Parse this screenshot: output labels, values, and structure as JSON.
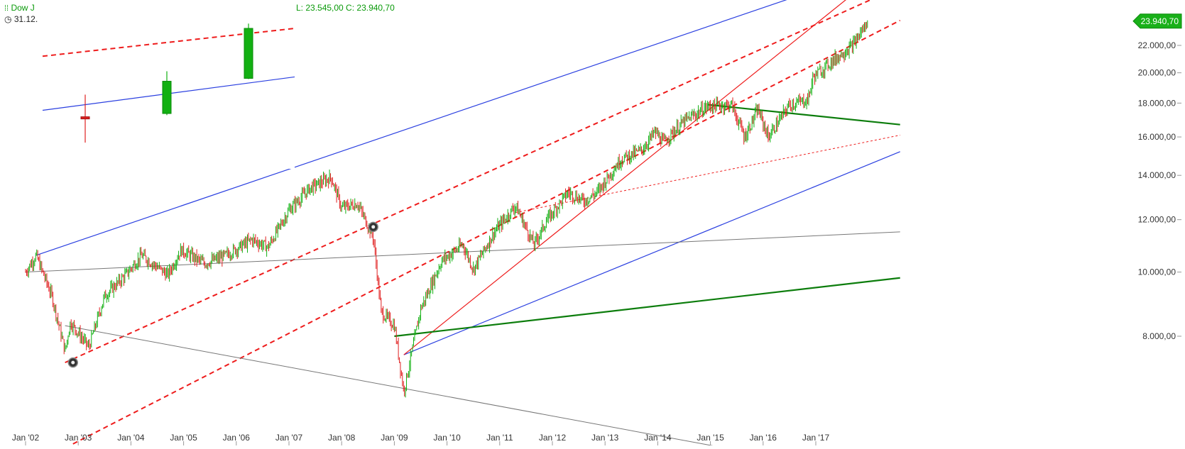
{
  "header": {
    "symbol_label": "Dow J",
    "date_label": "31.12.",
    "low_close_label": "L: 23.545,00  C: 23.940,70"
  },
  "last_price_tag": "23.940,70",
  "colors": {
    "up": "#12b012",
    "down": "#e02020",
    "blue_line": "#2a3fe0",
    "red_line": "#ee1c1c",
    "green_line": "#0c7d0c",
    "gray_line": "#777777",
    "tag_bg": "#19b019"
  },
  "chart_data": {
    "type": "candlestick",
    "title": "Dow J",
    "scale": "log",
    "x_tick_labels": [
      "Jan '02",
      "Jan '03",
      "Jan '04",
      "Jan '05",
      "Jan '06",
      "Jan '07",
      "Jan '08",
      "Jan '09",
      "Jan '10",
      "Jan '11",
      "Jan '12",
      "Jan '13",
      "Jan '14",
      "Jan '15",
      "Jan '16",
      "Jan '17"
    ],
    "y_tick_labels": [
      "8.000,00",
      "10.000,00",
      "12.000,00",
      "14.000,00",
      "16.000,00",
      "18.000,00",
      "20.000,00",
      "22.000,00"
    ],
    "y_ticks": [
      8000,
      10000,
      12000,
      14000,
      16000,
      18000,
      20000,
      22000
    ],
    "last_close": 23940.7,
    "last_low": 23545,
    "price_path": [
      [
        2002.0,
        10000
      ],
      [
        2002.2,
        10600
      ],
      [
        2002.5,
        9200
      ],
      [
        2002.75,
        7600
      ],
      [
        2002.85,
        8400
      ],
      [
        2003.2,
        7700
      ],
      [
        2003.5,
        9200
      ],
      [
        2003.9,
        9900
      ],
      [
        2004.2,
        10600
      ],
      [
        2004.7,
        9900
      ],
      [
        2004.95,
        10800
      ],
      [
        2005.4,
        10300
      ],
      [
        2005.8,
        10600
      ],
      [
        2006.3,
        11200
      ],
      [
        2006.6,
        10900
      ],
      [
        2007.0,
        12400
      ],
      [
        2007.4,
        13400
      ],
      [
        2007.8,
        13900
      ],
      [
        2008.0,
        12500
      ],
      [
        2008.3,
        12700
      ],
      [
        2008.6,
        11300
      ],
      [
        2008.75,
        8700
      ],
      [
        2009.0,
        8300
      ],
      [
        2009.18,
        6600
      ],
      [
        2009.5,
        8800
      ],
      [
        2009.9,
        10400
      ],
      [
        2010.3,
        11000
      ],
      [
        2010.5,
        10100
      ],
      [
        2010.9,
        11500
      ],
      [
        2011.3,
        12600
      ],
      [
        2011.65,
        11000
      ],
      [
        2011.9,
        12000
      ],
      [
        2012.3,
        13200
      ],
      [
        2012.6,
        12800
      ],
      [
        2012.85,
        13200
      ],
      [
        2013.3,
        14800
      ],
      [
        2013.7,
        15300
      ],
      [
        2013.95,
        16300
      ],
      [
        2014.1,
        15700
      ],
      [
        2014.5,
        16900
      ],
      [
        2014.95,
        17800
      ],
      [
        2015.4,
        17900
      ],
      [
        2015.65,
        16000
      ],
      [
        2015.9,
        17600
      ],
      [
        2016.1,
        16000
      ],
      [
        2016.5,
        17900
      ],
      [
        2016.85,
        18200
      ],
      [
        2016.95,
        19700
      ],
      [
        2017.3,
        20800
      ],
      [
        2017.7,
        22000
      ],
      [
        2017.99,
        23940
      ]
    ],
    "inset_candles": [
      {
        "open": 17300,
        "close": 17200,
        "high": 18700,
        "low": 15800
      },
      {
        "open": 17500,
        "close": 19600,
        "high": 20300,
        "low": 17400
      },
      {
        "open": 19800,
        "close": 23600,
        "high": 24000,
        "low": 19750
      }
    ],
    "trendlines": [
      {
        "style": "blue",
        "from": [
          2002.2,
          10600
        ],
        "to": [
          2018.6,
          29500
        ]
      },
      {
        "style": "blue",
        "from": [
          2009.18,
          7500
        ],
        "to": [
          2018.6,
          15200
        ]
      },
      {
        "style": "red-dashed",
        "from": [
          2002.75,
          7300
        ],
        "to": [
          2018.6,
          27000
        ]
      },
      {
        "style": "red-dashed",
        "from": [
          2002.9,
          5500
        ],
        "to": [
          2018.6,
          24000
        ]
      },
      {
        "style": "red-dotted",
        "from": [
          2011.3,
          12300
        ],
        "to": [
          2018.6,
          16100
        ]
      },
      {
        "style": "red",
        "from": [
          2009.18,
          7500
        ],
        "to": [
          2018.6,
          30000
        ]
      },
      {
        "style": "green",
        "from": [
          2014.95,
          17900
        ],
        "to": [
          2018.6,
          16700
        ]
      },
      {
        "style": "green",
        "from": [
          2009.0,
          8000
        ],
        "to": [
          2018.6,
          9800
        ]
      },
      {
        "style": "gray",
        "from": [
          2002.0,
          10000
        ],
        "to": [
          2018.6,
          11500
        ]
      },
      {
        "style": "gray",
        "from": [
          2002.75,
          8300
        ],
        "to": [
          2015.4,
          5400
        ]
      }
    ],
    "markers": [
      [
        2002.9,
        7300
      ],
      [
        2008.6,
        11700
      ]
    ]
  }
}
